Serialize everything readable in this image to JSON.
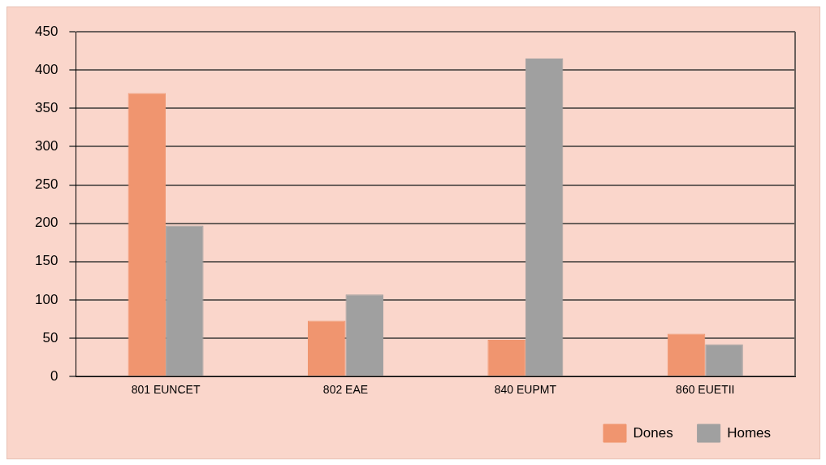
{
  "chart_data": {
    "type": "bar",
    "categories": [
      "801 EUNCET",
      "802 EAE",
      "840 EUPMT",
      "860 EUETII"
    ],
    "series": [
      {
        "name": "Dones",
        "color": "#f0956f",
        "values": [
          370,
          73,
          48,
          56
        ]
      },
      {
        "name": "Homes",
        "color": "#a0a0a0",
        "values": [
          197,
          107,
          415,
          42
        ]
      }
    ],
    "ylim": [
      0,
      450
    ],
    "yticks": [
      0,
      50,
      100,
      150,
      200,
      250,
      300,
      350,
      400,
      450
    ],
    "grid": "y",
    "legend": "bottom right"
  }
}
